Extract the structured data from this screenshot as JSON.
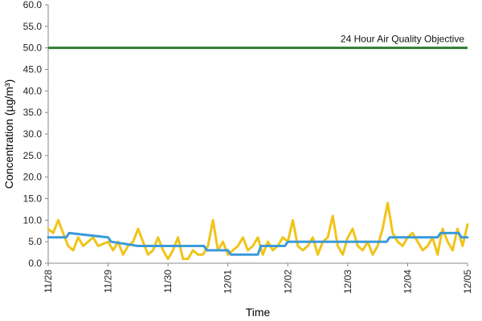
{
  "chart_data": {
    "type": "line",
    "title": "",
    "xlabel": "Time",
    "ylabel": "Concentration (µg/m³)",
    "ylim": [
      0,
      60
    ],
    "y_ticks": [
      "0.0",
      "5.0",
      "10.0",
      "15.0",
      "20.0",
      "25.0",
      "30.0",
      "35.0",
      "40.0",
      "45.0",
      "50.0",
      "55.0",
      "60.0"
    ],
    "x_ticks": [
      "11/28",
      "11/29",
      "11/30",
      "12/01",
      "12/02",
      "12/03",
      "12/04",
      "12/05"
    ],
    "x_range_days": [
      0,
      7
    ],
    "grid": false,
    "legend": "none",
    "reference_line": {
      "label": "24 Hour Air Quality Objective",
      "value": 50,
      "color": "#2e7d32"
    },
    "series": [
      {
        "color": "#f0c419",
        "x": [
          0,
          0.083,
          0.167,
          0.25,
          0.333,
          0.417,
          0.5,
          0.583,
          0.667,
          0.75,
          0.833,
          0.917,
          1,
          1.083,
          1.167,
          1.25,
          1.333,
          1.417,
          1.5,
          1.583,
          1.667,
          1.75,
          1.833,
          1.917,
          2,
          2.083,
          2.167,
          2.25,
          2.333,
          2.417,
          2.5,
          2.583,
          2.667,
          2.75,
          2.833,
          2.917,
          3,
          3.083,
          3.167,
          3.25,
          3.333,
          3.417,
          3.5,
          3.583,
          3.667,
          3.75,
          3.833,
          3.917,
          4,
          4.083,
          4.167,
          4.25,
          4.333,
          4.417,
          4.5,
          4.583,
          4.667,
          4.75,
          4.833,
          4.917,
          5,
          5.083,
          5.167,
          5.25,
          5.333,
          5.417,
          5.5,
          5.583,
          5.667,
          5.75,
          5.833,
          5.917,
          6,
          6.083,
          6.167,
          6.25,
          6.333,
          6.417,
          6.5,
          6.583,
          6.667,
          6.75,
          6.833,
          6.917,
          7
        ],
        "values": [
          8,
          7,
          10,
          7,
          4,
          3,
          6,
          4,
          5,
          6,
          4,
          4.5,
          5,
          3,
          5,
          2,
          4,
          5,
          8,
          5,
          2,
          3,
          6,
          3,
          1,
          3,
          6,
          1,
          1,
          3,
          2,
          2,
          4,
          10,
          3,
          5,
          2,
          3,
          4,
          6,
          3,
          4,
          6,
          2,
          5,
          3,
          4,
          6,
          5,
          10,
          4,
          3,
          4,
          6,
          2,
          5,
          6,
          11,
          4,
          2,
          6,
          8,
          4,
          3,
          5,
          2,
          4,
          8,
          14,
          7,
          5,
          4,
          6,
          7,
          5,
          3,
          4,
          6,
          2,
          8,
          5,
          3,
          8,
          4,
          9
        ]
      },
      {
        "color": "#3a9ad9",
        "x": [
          0,
          0.3,
          0.35,
          1.0,
          1.05,
          1.5,
          2.6,
          2.65,
          3.0,
          3.05,
          3.5,
          3.55,
          3.95,
          4.0,
          4.95,
          5.0,
          5.65,
          5.7,
          6.15,
          6.2,
          6.5,
          6.55,
          6.85,
          6.9,
          7.0
        ],
        "values": [
          6,
          6,
          7,
          6,
          5,
          4,
          4,
          3,
          3,
          2,
          2,
          4,
          4,
          5,
          5,
          5,
          5,
          6,
          6,
          6,
          6,
          7,
          7,
          6,
          6
        ]
      }
    ]
  }
}
